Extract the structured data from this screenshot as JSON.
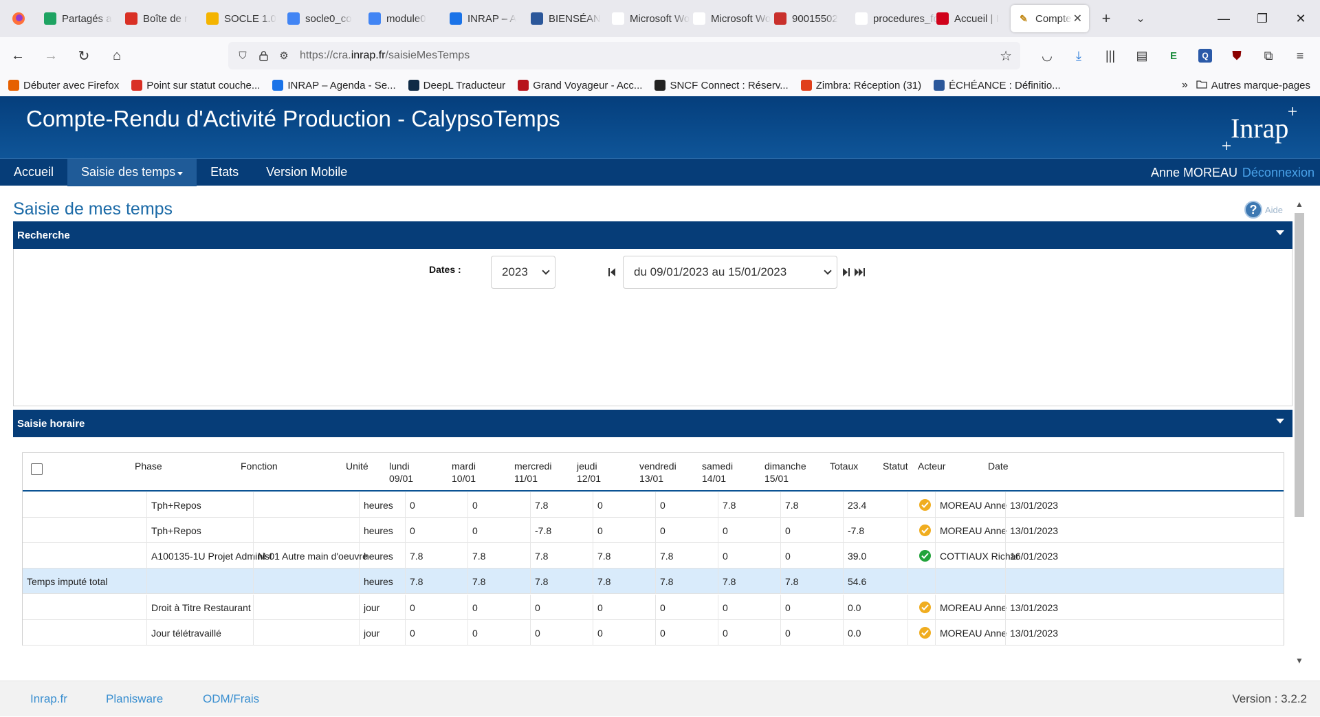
{
  "browser": {
    "tabs": [
      {
        "label": "Partagés a",
        "icon": "google-drive-icon",
        "color": "#1ea362"
      },
      {
        "label": "Boîte de r",
        "icon": "gmail-icon",
        "color": "#d93025"
      },
      {
        "label": "SOCLE 1.0",
        "icon": "google-drive-icon",
        "color": "#f4b400"
      },
      {
        "label": "socle0_co",
        "icon": "google-docs-icon",
        "color": "#4285f4"
      },
      {
        "label": "module0",
        "icon": "google-docs-icon",
        "color": "#4285f4"
      },
      {
        "label": "INRAP – A",
        "icon": "calendar-icon",
        "color": "#1a73e8"
      },
      {
        "label": "BIENSÉAN",
        "icon": "forms-icon",
        "color": "#2b579a"
      },
      {
        "label": "Microsoft Wo",
        "icon": "word-icon",
        "color": "#ffffff"
      },
      {
        "label": "Microsoft Wo",
        "icon": "word-icon",
        "color": "#ffffff"
      },
      {
        "label": "90015502",
        "icon": "pdf-icon",
        "color": "#c9302c"
      },
      {
        "label": "procedures_fo",
        "icon": "document-icon",
        "color": "#ffffff"
      },
      {
        "label": "Accueil | I",
        "icon": "inrap-icon",
        "color": "#d0021b"
      }
    ],
    "active_tab": {
      "label": "Compte",
      "icon": "pen-icon"
    },
    "url_prefix": "https://cra.",
    "url_domain": "inrap.fr",
    "url_path": "/saisieMesTemps",
    "bookmarks": [
      {
        "label": "Débuter avec Firefox",
        "icon": "firefox-icon",
        "color": "#e66000"
      },
      {
        "label": "Point sur statut couche...",
        "icon": "gmail-icon",
        "color": "#d93025"
      },
      {
        "label": "INRAP – Agenda - Se...",
        "icon": "calendar-icon",
        "color": "#1a73e8"
      },
      {
        "label": "DeepL Traducteur",
        "icon": "deepl-icon",
        "color": "#0f2b46"
      },
      {
        "label": "Grand Voyageur - Acc...",
        "icon": "circle-icon",
        "color": "#b7141d"
      },
      {
        "label": "SNCF Connect : Réserv...",
        "icon": "sncf-icon",
        "color": "#222222"
      },
      {
        "label": "Zimbra: Réception (31)",
        "icon": "zimbra-icon",
        "color": "#e0401c"
      },
      {
        "label": "ÉCHÉANCE : Définitio...",
        "icon": "forms-icon",
        "color": "#2b579a"
      }
    ],
    "other_bookmarks": "Autres marque-pages"
  },
  "app": {
    "title": "Compte-Rendu d'Activité Production - CalypsoTemps",
    "logo_text": "Inrap",
    "menu": [
      {
        "label": "Accueil"
      },
      {
        "label": "Saisie des temps",
        "dropdown": true,
        "active": true
      },
      {
        "label": "Etats"
      },
      {
        "label": "Version Mobile"
      }
    ],
    "user": "Anne MOREAU",
    "logout": "Déconnexion",
    "page_title": "Saisie de mes temps",
    "help": "Aide"
  },
  "search_panel": {
    "title": "Recherche",
    "dates_label": "Dates :",
    "year": "2023",
    "week": "du 09/01/2023 au 15/01/2023"
  },
  "hours_panel": {
    "title": "Saisie horaire",
    "columns": [
      {
        "label": "Phase"
      },
      {
        "label": "Fonction"
      },
      {
        "label": "Unité"
      },
      {
        "label": "lundi",
        "sub": "09/01"
      },
      {
        "label": "mardi",
        "sub": "10/01"
      },
      {
        "label": "mercredi",
        "sub": "11/01"
      },
      {
        "label": "jeudi",
        "sub": "12/01"
      },
      {
        "label": "vendredi",
        "sub": "13/01"
      },
      {
        "label": "samedi",
        "sub": "14/01"
      },
      {
        "label": "dimanche",
        "sub": "15/01"
      },
      {
        "label": "Totaux"
      },
      {
        "label": "Statut"
      },
      {
        "label": "Acteur"
      },
      {
        "label": "Date"
      }
    ],
    "rows": [
      {
        "label": "",
        "phase": "Tph+Repos",
        "fonction": "",
        "unite": "heures",
        "days": [
          "0",
          "0",
          "7.8",
          "0",
          "0",
          "7.8",
          "7.8"
        ],
        "total": "23.4",
        "status": "pending",
        "acteur": "MOREAU Anne",
        "date": "13/01/2023"
      },
      {
        "label": "",
        "phase": "Tph+Repos",
        "fonction": "",
        "unite": "heures",
        "days": [
          "0",
          "0",
          "-7.8",
          "0",
          "0",
          "0",
          "0"
        ],
        "total": "-7.8",
        "status": "pending",
        "acteur": "MOREAU Anne",
        "date": "13/01/2023"
      },
      {
        "label": "",
        "phase": "A100135-1U Projet Administ",
        "fonction": "M-01 Autre main d'oeuvre",
        "unite": "heures",
        "days": [
          "7.8",
          "7.8",
          "7.8",
          "7.8",
          "7.8",
          "0",
          "0"
        ],
        "total": "39.0",
        "status": "validated",
        "acteur": "COTTIAUX Richar",
        "date": "16/01/2023"
      },
      {
        "label": "Temps imputé total",
        "phase": "",
        "fonction": "",
        "unite": "heures",
        "days": [
          "7.8",
          "7.8",
          "7.8",
          "7.8",
          "7.8",
          "7.8",
          "7.8"
        ],
        "total": "54.6",
        "status": "",
        "acteur": "",
        "date": "",
        "is_total": true
      },
      {
        "label": "",
        "phase": "Droit à Titre Restaurant",
        "fonction": "",
        "unite": "jour",
        "days": [
          "0",
          "0",
          "0",
          "0",
          "0",
          "0",
          "0"
        ],
        "total": "0.0",
        "status": "pending",
        "acteur": "MOREAU Anne",
        "date": "13/01/2023"
      },
      {
        "label": "",
        "phase": "Jour télétravaillé",
        "fonction": "",
        "unite": "jour",
        "days": [
          "0",
          "0",
          "0",
          "0",
          "0",
          "0",
          "0"
        ],
        "total": "0.0",
        "status": "pending",
        "acteur": "MOREAU Anne",
        "date": "13/01/2023"
      }
    ]
  },
  "footer": {
    "links": [
      "Inrap.fr",
      "Planisware",
      "ODM/Frais"
    ],
    "version": "Version : 3.2.2"
  },
  "colors": {
    "header_blue": "#063d78",
    "link_blue": "#3a8fd0",
    "status_pending": "#f0ad1f",
    "status_validated": "#22a33a",
    "total_row": "#d9ebfb"
  }
}
